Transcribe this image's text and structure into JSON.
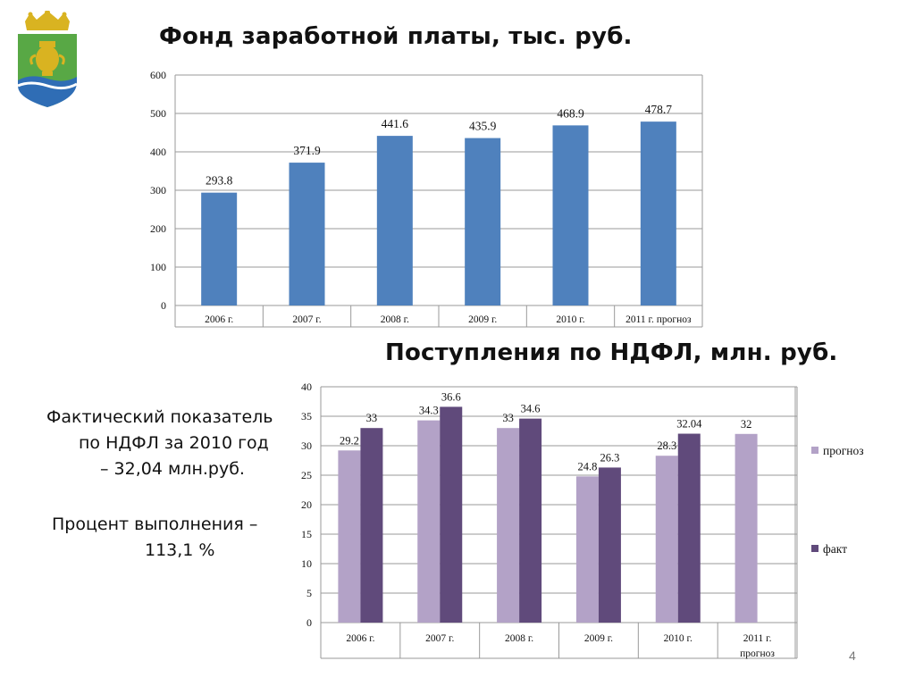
{
  "slide": {
    "title1": "Фонд заработной платы, тыс. руб.",
    "title2": "Поступления по НДФЛ, млн. руб.",
    "side_lines": [
      "Фактический показатель",
      "по НДФЛ за 2010 год",
      "– 32,04 млн.руб.",
      "Процент выполнения –",
      "113,1 %"
    ],
    "slide_number": "4",
    "emblem_icon": "coat-of-arms-icon"
  },
  "colors": {
    "bar_blue": "#4f81bd",
    "forecast": "#b3a2c7",
    "fact": "#604a7b",
    "grid": "#9a9a9a",
    "text": "#111111"
  },
  "chart_data": [
    {
      "type": "bar",
      "title": "Фонд заработной платы, тыс. руб.",
      "categories": [
        "2006 г.",
        "2007 г.",
        "2008 г.",
        "2009 г.",
        "2010 г.",
        "2011 г. прогноз"
      ],
      "values": [
        293.8,
        371.9,
        441.6,
        435.9,
        468.9,
        478.7
      ],
      "data_labels": [
        "293.8",
        "371.9",
        "441.6",
        "435.9",
        "468.9",
        "478.7"
      ],
      "ylim": [
        0,
        600
      ],
      "yticks": [
        "0",
        "100",
        "200",
        "300",
        "400",
        "500",
        "600"
      ],
      "grid": true,
      "legend": "none"
    },
    {
      "type": "bar",
      "title": "Поступления по НДФЛ, млн. руб.",
      "categories": [
        "2006 г.",
        "2007 г.",
        "2008 г.",
        "2009 г.",
        "2010 г.",
        "2011 г. прогноз"
      ],
      "series": [
        {
          "name": "прогноз",
          "values": [
            29.2,
            34.3,
            33,
            24.8,
            28.3,
            32
          ],
          "labels": [
            "29.2",
            "34.3",
            "33",
            "24.8",
            "28.3",
            "32"
          ]
        },
        {
          "name": "факт",
          "values": [
            33,
            36.6,
            34.6,
            26.3,
            32.04,
            null
          ],
          "labels": [
            "33",
            "36.6",
            "34.6",
            "26.3",
            "32.04",
            ""
          ]
        }
      ],
      "ylim": [
        0,
        40
      ],
      "yticks": [
        "0",
        "5",
        "10",
        "15",
        "20",
        "25",
        "30",
        "35",
        "40"
      ],
      "grid": true,
      "legend": "right"
    }
  ]
}
